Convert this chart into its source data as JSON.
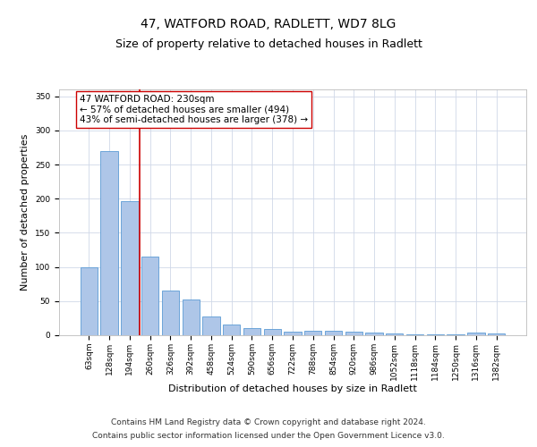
{
  "title": "47, WATFORD ROAD, RADLETT, WD7 8LG",
  "subtitle": "Size of property relative to detached houses in Radlett",
  "xlabel": "Distribution of detached houses by size in Radlett",
  "ylabel": "Number of detached properties",
  "categories": [
    "63sqm",
    "128sqm",
    "194sqm",
    "260sqm",
    "326sqm",
    "392sqm",
    "458sqm",
    "524sqm",
    "590sqm",
    "656sqm",
    "722sqm",
    "788sqm",
    "854sqm",
    "920sqm",
    "986sqm",
    "1052sqm",
    "1118sqm",
    "1184sqm",
    "1250sqm",
    "1316sqm",
    "1382sqm"
  ],
  "values": [
    100,
    270,
    196,
    115,
    66,
    53,
    27,
    16,
    10,
    9,
    5,
    6,
    6,
    5,
    4,
    3,
    1,
    1,
    1,
    4,
    3
  ],
  "bar_color": "#aec6e8",
  "bar_edge_color": "#5b9bd5",
  "vline_x": 2.5,
  "vline_color": "#cc0000",
  "annotation_text": "47 WATFORD ROAD: 230sqm\n← 57% of detached houses are smaller (494)\n43% of semi-detached houses are larger (378) →",
  "annotation_box_color": "#ffffff",
  "annotation_box_edge_color": "#cc0000",
  "ylim": [
    0,
    360
  ],
  "yticks": [
    0,
    50,
    100,
    150,
    200,
    250,
    300,
    350
  ],
  "background_color": "#ffffff",
  "grid_color": "#d0d8e8",
  "footer_line1": "Contains HM Land Registry data © Crown copyright and database right 2024.",
  "footer_line2": "Contains public sector information licensed under the Open Government Licence v3.0.",
  "title_fontsize": 10,
  "subtitle_fontsize": 9,
  "xlabel_fontsize": 8,
  "ylabel_fontsize": 8,
  "tick_fontsize": 6.5,
  "annotation_fontsize": 7.5,
  "footer_fontsize": 6.5
}
